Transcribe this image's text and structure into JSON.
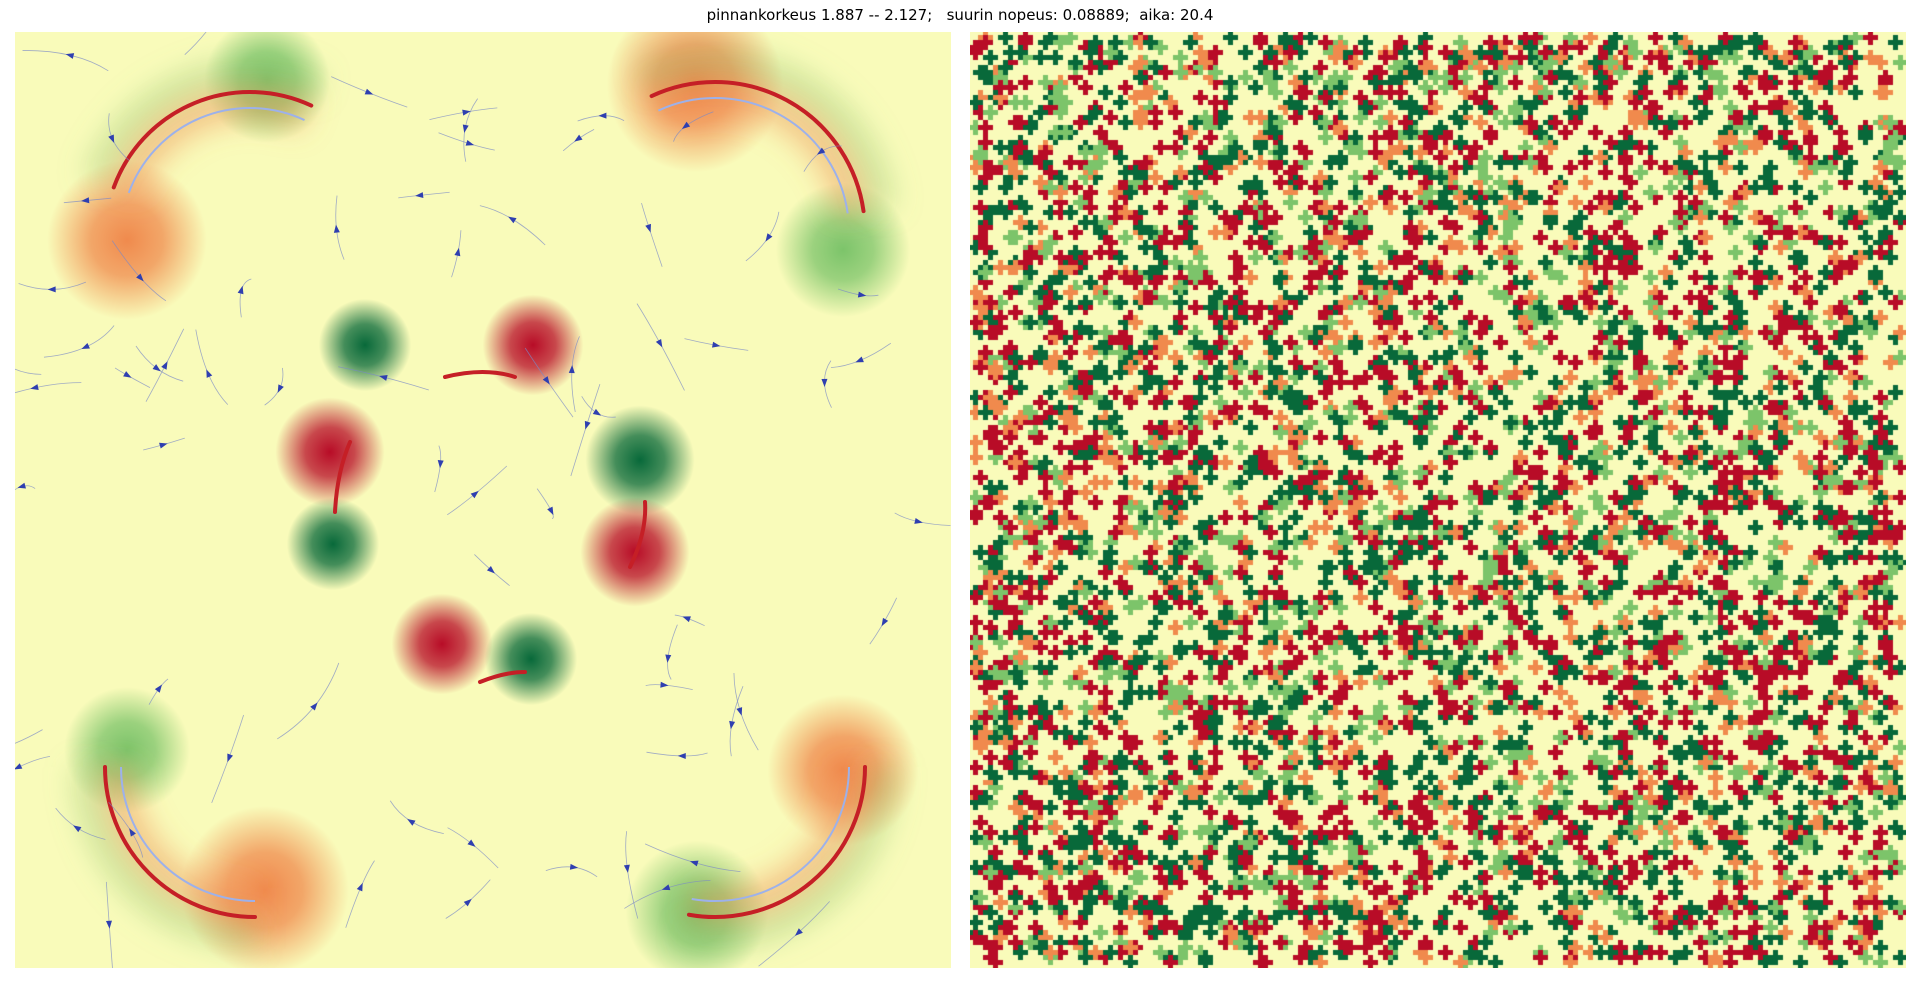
{
  "figure": {
    "title": "pinnankorkeus 1.887 -- 2.127;   suurin nopeus: 0.08889;  aika: 20.4"
  },
  "colors": {
    "background": "#ffffff",
    "field_neutral": "#f9fbba",
    "field_high": "#b80c27",
    "field_mid_high": "#f08a4d",
    "field_low": "#08693a",
    "field_mid_low": "#7cc46a",
    "streamline": "#7b89c7",
    "arrow": "#2f3fb0",
    "trail_hot": "#c51f26",
    "trail_light": "#9db1ea"
  },
  "left_panel": {
    "content": "smooth surface-height field with vortex pairs, streamlines and particle trails"
  },
  "right_panel": {
    "content": "noisy granular surface-height field"
  }
}
